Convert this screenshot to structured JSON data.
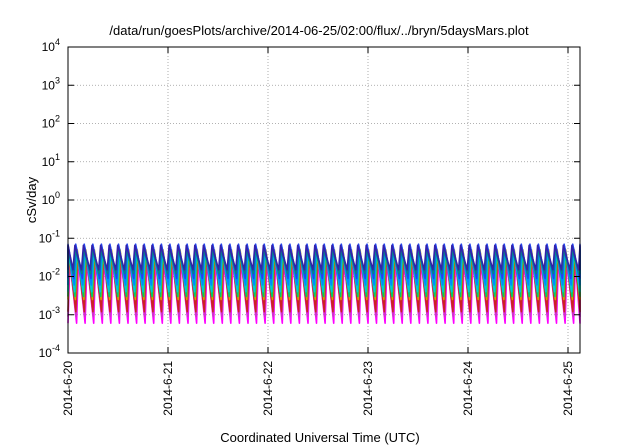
{
  "chart_data": {
    "type": "line",
    "title": "/data/run/goesPlots/archive/2014-06-25/02:00/flux/../bryn/5daysMars.plot",
    "xlabel": "Coordinated Universal Time (UTC)",
    "ylabel": "cSv/day",
    "x_ticks": [
      "2014-6-20",
      "2014-6-21",
      "2014-6-22",
      "2014-6-23",
      "2014-6-24",
      "2014-6-25"
    ],
    "x_tick_days": [
      0,
      1,
      2,
      3,
      4,
      5
    ],
    "xlim_days": [
      0,
      5.12
    ],
    "y_ticks": [
      {
        "base": "10",
        "exp": "4",
        "value": 10000
      },
      {
        "base": "10",
        "exp": "3",
        "value": 1000
      },
      {
        "base": "10",
        "exp": "2",
        "value": 100
      },
      {
        "base": "10",
        "exp": "1",
        "value": 10
      },
      {
        "base": "10",
        "exp": "0",
        "value": 1
      },
      {
        "base": "10",
        "exp": "-1",
        "value": 0.1
      },
      {
        "base": "10",
        "exp": "-2",
        "value": 0.01
      },
      {
        "base": "10",
        "exp": "-3",
        "value": 0.001
      },
      {
        "base": "10",
        "exp": "-4",
        "value": 0.0001
      }
    ],
    "yscale": "log",
    "ylim": [
      0.0001,
      10000
    ],
    "grid": true,
    "sawtooth_period_days": 0.0857,
    "series": [
      {
        "color": "#ff00ff",
        "peak": 0.025,
        "trough": 0.0006
      },
      {
        "color": "#cc33cc",
        "peak": 0.03,
        "trough": 0.0009
      },
      {
        "color": "#cc2222",
        "peak": 0.04,
        "trough": 0.0012
      },
      {
        "color": "#d4a000",
        "peak": 0.05,
        "trough": 0.0025
      },
      {
        "color": "#00cc66",
        "peak": 0.045,
        "trough": 0.003
      },
      {
        "color": "#00c8d8",
        "peak": 0.055,
        "trough": 0.004
      },
      {
        "color": "#0088ff",
        "peak": 0.06,
        "trough": 0.006
      },
      {
        "color": "#2244ee",
        "peak": 0.07,
        "trough": 0.009
      },
      {
        "color": "#008888",
        "peak": 0.05,
        "trough": 0.012
      },
      {
        "color": "#3322aa",
        "peak": 0.065,
        "trough": 0.015
      }
    ]
  }
}
